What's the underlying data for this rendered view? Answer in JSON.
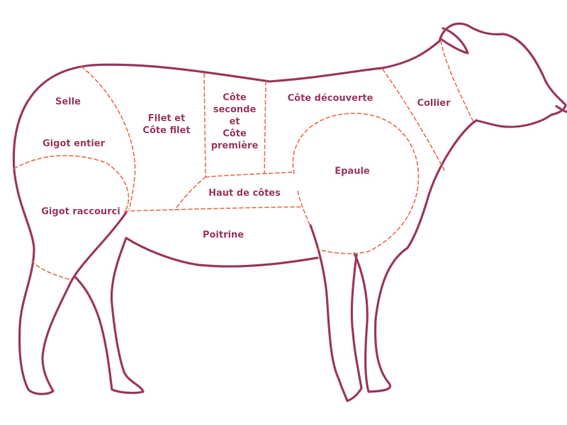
{
  "colors": {
    "outline": "#9c3a62",
    "cut_lines": "#e8704d",
    "label_text": "#9c3a62",
    "background": "#ffffff"
  },
  "cuts": {
    "selle": "Selle",
    "gigot_entier": "Gigot entier",
    "gigot_raccourci": "Gigot raccourci",
    "filet": [
      "Filet et",
      "Côte filet"
    ],
    "cote_seconde": [
      "Côte",
      "seconde",
      "et",
      "Côte",
      "première"
    ],
    "haut_de_cotes": "Haut de côtes",
    "poitrine": "Poitrine",
    "cote_decouverte": "Côte découverte",
    "epaule": "Epaule",
    "collier": "Collier"
  }
}
